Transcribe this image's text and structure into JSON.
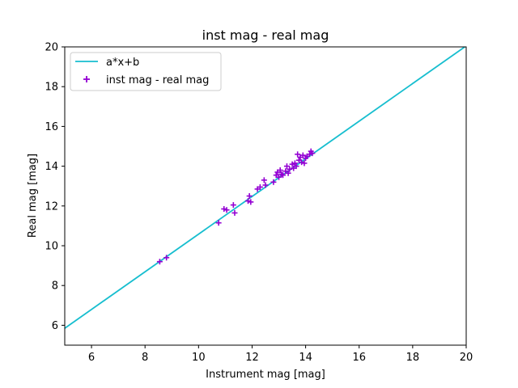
{
  "chart_data": {
    "type": "scatter",
    "title": "inst mag - real mag",
    "xlabel": "Instrument mag [mag]",
    "ylabel": "Real mag [mag]",
    "xlim": [
      5,
      20
    ],
    "ylim": [
      5,
      20
    ],
    "xticks": [
      6,
      8,
      10,
      12,
      14,
      16,
      18,
      20
    ],
    "yticks": [
      6,
      8,
      10,
      12,
      14,
      16,
      18,
      20
    ],
    "grid": false,
    "legend_position": "top-left",
    "fit_line": {
      "name": "a*x+b",
      "color": "#17becf",
      "x": [
        5,
        20
      ],
      "y": [
        5.85,
        20.05
      ]
    },
    "series": [
      {
        "name": "inst mag - real mag",
        "marker": "plus",
        "color": "#9400d3",
        "points": [
          [
            8.55,
            9.2
          ],
          [
            8.8,
            9.4
          ],
          [
            10.75,
            11.15
          ],
          [
            10.95,
            11.85
          ],
          [
            11.05,
            11.8
          ],
          [
            11.3,
            12.05
          ],
          [
            11.35,
            11.65
          ],
          [
            11.85,
            12.25
          ],
          [
            11.9,
            12.5
          ],
          [
            11.95,
            12.2
          ],
          [
            12.2,
            12.85
          ],
          [
            12.3,
            12.95
          ],
          [
            12.45,
            13.3
          ],
          [
            12.5,
            13.05
          ],
          [
            12.8,
            13.2
          ],
          [
            12.9,
            13.55
          ],
          [
            12.95,
            13.7
          ],
          [
            13.0,
            13.45
          ],
          [
            13.05,
            13.8
          ],
          [
            13.1,
            13.6
          ],
          [
            13.15,
            13.55
          ],
          [
            13.25,
            13.75
          ],
          [
            13.3,
            14.0
          ],
          [
            13.35,
            13.65
          ],
          [
            13.4,
            13.85
          ],
          [
            13.5,
            14.1
          ],
          [
            13.55,
            13.9
          ],
          [
            13.6,
            14.15
          ],
          [
            13.65,
            14.0
          ],
          [
            13.7,
            14.6
          ],
          [
            13.75,
            14.3
          ],
          [
            13.8,
            14.45
          ],
          [
            13.85,
            14.2
          ],
          [
            13.9,
            14.55
          ],
          [
            13.95,
            14.15
          ],
          [
            14.0,
            14.4
          ],
          [
            14.05,
            14.5
          ],
          [
            14.15,
            14.6
          ],
          [
            14.2,
            14.75
          ],
          [
            14.25,
            14.65
          ]
        ]
      }
    ]
  }
}
